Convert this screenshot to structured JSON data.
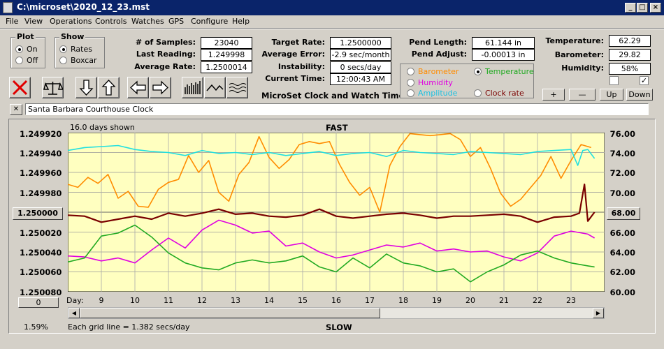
{
  "window": {
    "title": "C:\\microset\\2020_12_23.mst"
  },
  "menu": [
    "File",
    "View",
    "Operations",
    "Controls",
    "Watches",
    "GPS",
    "Configure",
    "Help"
  ],
  "plot_group": {
    "label": "Plot",
    "on": "On",
    "off": "Off",
    "selected": "On"
  },
  "show_group": {
    "label": "Show",
    "rates": "Rates",
    "boxcar": "Boxcar",
    "selected": "Rates"
  },
  "stats": {
    "samples_label": "# of Samples:",
    "samples": "23040",
    "last_label": "Last Reading:",
    "last": "1.249998",
    "avg_label": "Average Rate:",
    "avg": "1.2500014",
    "target_label": "Target Rate:",
    "target": "1.2500000",
    "avgerr_label": "Average Error:",
    "avgerr": "-2.9 sec/month",
    "instab_label": "Instability:",
    "instab": "0 secs/day",
    "time_label": "Current Time:",
    "time": "12:00:43 AM",
    "pendlen_label": "Pend Length:",
    "pendlen": "61.144 in",
    "pendadj_label": "Pend Adjust:",
    "pendadj": "-0.00013 in",
    "temp_label": "Temperature:",
    "temp": "62.29",
    "baro_label": "Barometer:",
    "baro": "29.82",
    "hum_label": "Humidity:",
    "hum": "58%"
  },
  "app_name": "MicroSet Clock and Watch Timer",
  "sensor_select": {
    "barometer": "Barometer",
    "temperature": "Temperature",
    "humidity": "Humidity",
    "amplitude": "Amplitude",
    "clockrate": "Clock rate",
    "selected": "Temperature"
  },
  "buttons": {
    "plus": "+",
    "minus": "—",
    "up": "Up",
    "down": "Down"
  },
  "check_right": "✓",
  "clock_name": "Santa Barbara Courthouse Clock",
  "close_x": "✕",
  "left_center_value": "1.250000",
  "right_center_value": "68.00",
  "scroll_value": "0",
  "days_shown": "16.0 days shown",
  "fast_label": "FAST",
  "slow_label": "SLOW",
  "day_label": "Day:",
  "grid_note": "Each grid line = 1.382 secs/day",
  "percent": "1.59%",
  "colors": {
    "chart_bg": "#ffffc0",
    "barometer": "#ff8c00",
    "temperature": "#22aa22",
    "humidity": "#e000e0",
    "amplitude": "#20e0e0",
    "clockrate": "#7a0000"
  },
  "chart_data": {
    "type": "line",
    "x_range": [
      8,
      24
    ],
    "x_ticks": [
      9,
      10,
      11,
      12,
      13,
      14,
      15,
      16,
      17,
      18,
      19,
      20,
      21,
      22,
      23
    ],
    "left_axis": {
      "ticks": [
        "1.249920",
        "1.249940",
        "1.249960",
        "1.249980",
        "1.250000",
        "1.250020",
        "1.250040",
        "1.250060",
        "1.250080"
      ],
      "range": [
        1.25008,
        1.24992
      ]
    },
    "right_axis": {
      "ticks": [
        "76.00",
        "74.00",
        "72.00",
        "70.00",
        "68.00",
        "66.00",
        "64.00",
        "62.00",
        "60.00"
      ],
      "range": [
        60,
        76
      ]
    },
    "series": [
      {
        "name": "Barometer",
        "color": "#ff8c00",
        "x": [
          8,
          8.3,
          8.6,
          8.9,
          9.2,
          9.5,
          9.8,
          10.1,
          10.4,
          10.7,
          11,
          11.3,
          11.6,
          11.9,
          12.2,
          12.5,
          12.8,
          13.1,
          13.4,
          13.7,
          14,
          14.3,
          14.6,
          14.9,
          15.2,
          15.5,
          15.8,
          16.1,
          16.4,
          16.7,
          17,
          17.3,
          17.6,
          17.9,
          18.2,
          18.5,
          18.8,
          19.1,
          19.4,
          19.7,
          20,
          20.3,
          20.6,
          20.9,
          21.2,
          21.5,
          21.8,
          22.1,
          22.4,
          22.7,
          23,
          23.3,
          23.6
        ],
        "y": [
          70.8,
          70.5,
          71.5,
          70.9,
          71.8,
          69.4,
          70.1,
          68.6,
          68.5,
          70.3,
          71.0,
          71.3,
          73.7,
          72.0,
          73.2,
          70.0,
          69.1,
          71.8,
          73.0,
          75.6,
          73.5,
          72.4,
          73.3,
          74.8,
          75.1,
          74.9,
          75.1,
          72.8,
          71.0,
          69.7,
          70.5,
          68.0,
          72.7,
          74.6,
          75.9,
          75.8,
          75.7,
          75.8,
          75.9,
          75.3,
          73.6,
          74.5,
          72.4,
          69.9,
          68.6,
          69.3,
          70.5,
          71.7,
          73.6,
          71.4,
          73.2,
          74.8,
          74.5
        ]
      },
      {
        "name": "Amplitude",
        "color": "#20e0e0",
        "x": [
          8,
          8.5,
          9,
          9.5,
          10,
          10.5,
          11,
          11.5,
          12,
          12.5,
          13,
          13.5,
          14,
          14.5,
          15,
          15.5,
          16,
          16.5,
          17,
          17.5,
          18,
          18.5,
          19,
          19.5,
          20,
          20.5,
          21,
          21.5,
          22,
          22.5,
          23,
          23.2,
          23.35,
          23.5,
          23.7
        ],
        "y": [
          74.2,
          74.5,
          74.6,
          74.7,
          74.3,
          74.1,
          74.0,
          73.7,
          74.2,
          73.9,
          74.0,
          73.8,
          74.0,
          73.7,
          73.9,
          74.1,
          73.7,
          73.9,
          74.0,
          73.6,
          74.2,
          74.0,
          73.9,
          73.8,
          74.1,
          74.0,
          73.9,
          73.8,
          74.1,
          74.2,
          74.3,
          72.7,
          74.2,
          74.3,
          73.4
        ]
      },
      {
        "name": "Clock rate",
        "color": "#7a0000",
        "x": [
          8,
          8.5,
          9,
          9.5,
          10,
          10.5,
          11,
          11.5,
          12,
          12.5,
          13,
          13.5,
          14,
          14.5,
          15,
          15.5,
          16,
          16.5,
          17,
          17.5,
          18,
          18.5,
          19,
          19.5,
          20,
          20.5,
          21,
          21.5,
          22,
          22.5,
          23,
          23.25,
          23.4,
          23.5,
          23.7
        ],
        "y": [
          67.7,
          67.6,
          67.0,
          67.3,
          67.6,
          67.3,
          67.9,
          67.6,
          67.9,
          68.3,
          67.8,
          67.9,
          67.6,
          67.5,
          67.7,
          68.3,
          67.6,
          67.4,
          67.6,
          67.8,
          67.9,
          67.7,
          67.4,
          67.6,
          67.6,
          67.7,
          67.8,
          67.6,
          67.0,
          67.5,
          67.6,
          67.9,
          70.8,
          67.1,
          68.0
        ]
      },
      {
        "name": "Humidity",
        "color": "#e000e0",
        "x": [
          8,
          8.5,
          9,
          9.5,
          10,
          10.5,
          11,
          11.5,
          12,
          12.5,
          13,
          13.5,
          14,
          14.5,
          15,
          15.5,
          16,
          16.5,
          17,
          17.5,
          18,
          18.5,
          19,
          19.5,
          20,
          20.5,
          21,
          21.5,
          22,
          22.5,
          23,
          23.5,
          23.7
        ],
        "y": [
          63.6,
          63.5,
          63.1,
          63.4,
          62.9,
          64.2,
          65.4,
          64.4,
          66.2,
          67.2,
          66.7,
          65.9,
          66.1,
          64.6,
          64.9,
          64.0,
          63.4,
          63.7,
          64.2,
          64.7,
          64.5,
          64.9,
          64.1,
          64.3,
          64.0,
          64.1,
          63.5,
          63.1,
          63.9,
          65.6,
          66.1,
          65.8,
          65.4
        ]
      },
      {
        "name": "Temperature",
        "color": "#22aa22",
        "x": [
          8,
          8.5,
          9,
          9.5,
          10,
          10.5,
          11,
          11.5,
          12,
          12.5,
          13,
          13.5,
          14,
          14.5,
          15,
          15.5,
          16,
          16.5,
          17,
          17.5,
          18,
          18.5,
          19,
          19.5,
          20,
          20.5,
          21,
          21.5,
          22,
          22.5,
          23,
          23.5,
          23.7
        ],
        "y": [
          63.0,
          63.4,
          65.6,
          65.9,
          66.7,
          65.5,
          63.9,
          62.9,
          62.4,
          62.2,
          62.9,
          63.2,
          62.9,
          63.1,
          63.6,
          62.5,
          62.0,
          63.4,
          62.4,
          63.8,
          62.9,
          62.6,
          62.0,
          62.3,
          61.0,
          62.0,
          62.7,
          63.7,
          64.1,
          63.4,
          62.9,
          62.6,
          62.5
        ]
      }
    ]
  }
}
